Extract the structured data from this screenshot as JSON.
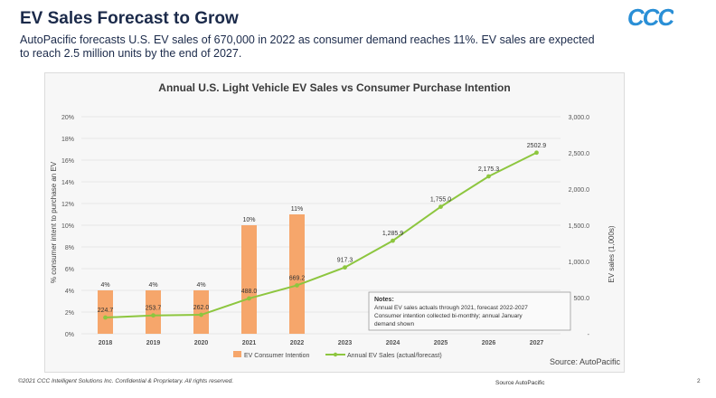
{
  "header": {
    "title": "EV Sales Forecast to Grow",
    "subtitle": "AutoPacific forecasts U.S. EV sales of 670,000 in 2022 as consumer demand reaches 11%. EV sales are expected to reach 2.5 million units by the end of 2027.",
    "logo_text": "CCC"
  },
  "colors": {
    "bar": "#f6a66b",
    "line": "#8dc63f",
    "navy": "#1b2a4a",
    "logo": "#2a8fd6"
  },
  "chart_data": {
    "type": "bar+line",
    "title": "Annual U.S. Light Vehicle EV Sales vs Consumer Purchase Intention",
    "categories": [
      "2018",
      "2019",
      "2020",
      "2021",
      "2022",
      "2023",
      "2024",
      "2025",
      "2026",
      "2027"
    ],
    "series": [
      {
        "name": "EV Consumer Intention",
        "type": "bar",
        "axis": "left",
        "values": [
          4,
          4,
          4,
          10,
          11,
          null,
          null,
          null,
          null,
          null
        ],
        "labels": [
          "4%",
          "4%",
          "4%",
          "10%",
          "11%",
          "",
          "",
          "",
          "",
          ""
        ]
      },
      {
        "name": "Annual EV Sales (actual/forecast)",
        "type": "line",
        "axis": "right",
        "values": [
          224.7,
          253.7,
          262.0,
          488.0,
          669.2,
          917.3,
          1285.9,
          1755.0,
          2175.3,
          2502.9
        ],
        "labels": [
          "224.7",
          "253.7",
          "262.0",
          "488.0",
          "669.2",
          "917.3",
          "1,285.9",
          "1,755.0",
          "2,175.3",
          "2502.9"
        ]
      }
    ],
    "ylabel_left": "% consumer intent to purchase an EV",
    "ylabel_right": "EV sales (1,000s)",
    "ylim_left": [
      0,
      20
    ],
    "ylim_right": [
      0,
      3000
    ],
    "yticks_left": [
      "0%",
      "2%",
      "4%",
      "6%",
      "8%",
      "10%",
      "12%",
      "14%",
      "16%",
      "18%",
      "20%"
    ],
    "yticks_right": [
      "-",
      "500.0",
      "1,000.0",
      "1,500.0",
      "2,000.0",
      "2,500.0",
      "3,000.0"
    ],
    "notes": {
      "heading": "Notes:",
      "lines": [
        "Annual EV sales actuals through 2021, forecast 2022-2027",
        "Consumer intention collected bi-monthly; annual January",
        "demand shown"
      ]
    },
    "source": "Source: AutoPacific",
    "legend": [
      "EV Consumer Intention",
      "Annual EV Sales (actual/forecast)"
    ]
  },
  "footer": {
    "copyright": "©2021 CCC Intelligent Solutions Inc. Confidential & Proprietary. All rights reserved.",
    "source": "Source AutoPacific",
    "page_number": "2"
  }
}
